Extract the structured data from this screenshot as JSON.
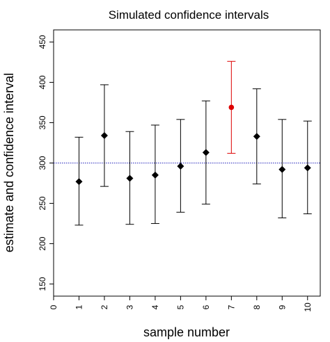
{
  "chart_data": {
    "type": "scatter",
    "title": "Simulated confidence intervals",
    "xlabel": "sample number",
    "ylabel": "estimate and confidence interval",
    "xlim": [
      0,
      10.5
    ],
    "ylim": [
      135,
      465
    ],
    "xticks": [
      "0",
      "1",
      "2",
      "3",
      "4",
      "5",
      "6",
      "7",
      "8",
      "9",
      "10"
    ],
    "yticks": [
      "150",
      "200",
      "250",
      "300",
      "350",
      "400",
      "450"
    ],
    "reference_line": {
      "y": 300,
      "color": "#2222bb",
      "style": "dotted"
    },
    "points": [
      {
        "x": 1,
        "estimate": 277,
        "lower": 223,
        "upper": 332,
        "color": "#000000",
        "marker": "diamond"
      },
      {
        "x": 2,
        "estimate": 334,
        "lower": 271,
        "upper": 397,
        "color": "#000000",
        "marker": "diamond"
      },
      {
        "x": 3,
        "estimate": 281,
        "lower": 224,
        "upper": 339,
        "color": "#000000",
        "marker": "diamond"
      },
      {
        "x": 4,
        "estimate": 285,
        "lower": 225,
        "upper": 347,
        "color": "#000000",
        "marker": "diamond"
      },
      {
        "x": 5,
        "estimate": 296,
        "lower": 239,
        "upper": 354,
        "color": "#000000",
        "marker": "diamond"
      },
      {
        "x": 6,
        "estimate": 313,
        "lower": 249,
        "upper": 377,
        "color": "#000000",
        "marker": "diamond"
      },
      {
        "x": 7,
        "estimate": 369,
        "lower": 312,
        "upper": 426,
        "color": "#dd0000",
        "marker": "circle"
      },
      {
        "x": 8,
        "estimate": 333,
        "lower": 274,
        "upper": 392,
        "color": "#000000",
        "marker": "diamond"
      },
      {
        "x": 9,
        "estimate": 292,
        "lower": 232,
        "upper": 354,
        "color": "#000000",
        "marker": "diamond"
      },
      {
        "x": 10,
        "estimate": 294,
        "lower": 237,
        "upper": 352,
        "color": "#000000",
        "marker": "diamond"
      }
    ]
  }
}
